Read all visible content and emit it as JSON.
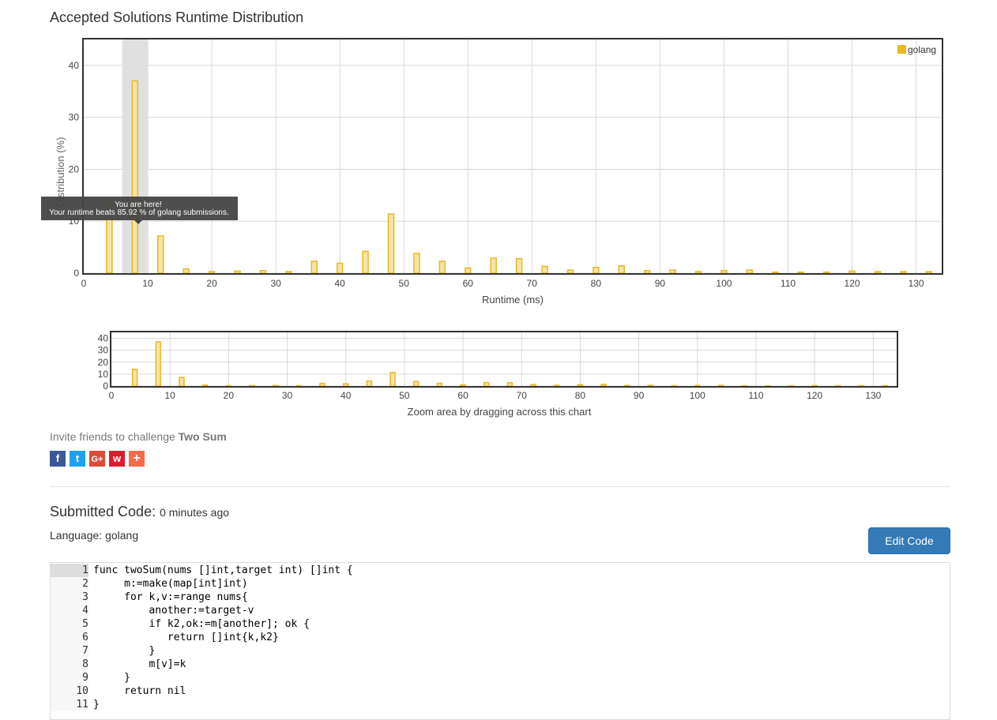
{
  "page_title": "Accepted Solutions Runtime Distribution",
  "colors": {
    "bar_fill": "#f5e3a8",
    "bar_stroke": "#e8b923",
    "legend": "#e8b923",
    "highlight": "#e0e0e0",
    "button": "#337ab7"
  },
  "chart_data": [
    {
      "type": "bar",
      "name": "main",
      "xlabel": "Runtime (ms)",
      "ylabel": "Distribution (%)",
      "xlim": [
        0,
        134
      ],
      "ylim": [
        0,
        45
      ],
      "xticks": [
        0,
        10,
        20,
        30,
        40,
        50,
        60,
        70,
        80,
        90,
        100,
        110,
        120,
        130
      ],
      "yticks": [
        0,
        10,
        20,
        30,
        40
      ],
      "grid": true,
      "legend_position": "top-right",
      "highlight_range": [
        6,
        10
      ],
      "series": [
        {
          "name": "golang",
          "x": [
            4,
            8,
            12,
            16,
            20,
            24,
            28,
            32,
            36,
            40,
            44,
            48,
            52,
            56,
            60,
            64,
            68,
            72,
            76,
            80,
            84,
            88,
            92,
            96,
            100,
            104,
            108,
            112,
            116,
            120,
            124,
            128,
            132
          ],
          "values": [
            14,
            37,
            7.2,
            0.8,
            0.3,
            0.4,
            0.5,
            0.3,
            2.3,
            1.9,
            4.2,
            11.4,
            3.8,
            2.3,
            1.0,
            2.9,
            2.8,
            1.3,
            0.6,
            1.1,
            1.4,
            0.5,
            0.6,
            0.3,
            0.5,
            0.6,
            0.2,
            0.2,
            0.2,
            0.4,
            0.3,
            0.3,
            0.3
          ]
        }
      ]
    },
    {
      "type": "bar",
      "name": "navigator",
      "xlim": [
        0,
        134
      ],
      "ylim": [
        0,
        45
      ],
      "xticks": [
        0,
        10,
        20,
        30,
        40,
        50,
        60,
        70,
        80,
        90,
        100,
        110,
        120,
        130
      ],
      "yticks": [
        0,
        10,
        20,
        30,
        40
      ],
      "xlabel": "Zoom area by dragging across this chart"
    }
  ],
  "tooltip": {
    "line1": "You are here!",
    "line2": "Your runtime beats 85.92 % of golang submissions."
  },
  "invite": {
    "text": "Invite friends to challenge",
    "problem": "Two Sum"
  },
  "share_buttons": [
    {
      "icon": "facebook-icon",
      "glyph": "f",
      "color": "#3b5998"
    },
    {
      "icon": "twitter-icon",
      "glyph": "t",
      "color": "#1da1f2"
    },
    {
      "icon": "google-plus-icon",
      "glyph": "G+",
      "color": "#dd4b39"
    },
    {
      "icon": "weibo-icon",
      "glyph": "w",
      "color": "#e6162d"
    },
    {
      "icon": "plus-icon",
      "glyph": "+",
      "color": "#f96a4b"
    }
  ],
  "submission": {
    "title": "Submitted Code:",
    "time": "0 minutes ago",
    "language": "Language: golang",
    "edit_label": "Edit Code"
  },
  "code": {
    "lines": [
      "func twoSum(nums []int,target int) []int {",
      "     m:=make(map[int]int)",
      "     for k,v:=range nums{",
      "         another:=target-v",
      "         if k2,ok:=m[another]; ok {",
      "            return []int{k,k2}",
      "         }",
      "         m[v]=k",
      "     }",
      "     return nil",
      "}"
    ]
  }
}
